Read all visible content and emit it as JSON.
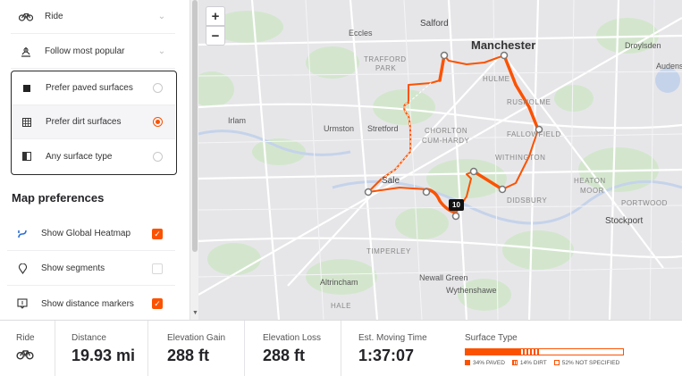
{
  "sidebar": {
    "routing_rows": [
      {
        "label": "Ride",
        "icon": "bike-icon"
      },
      {
        "label": "Follow most popular",
        "icon": "popular-route-icon"
      }
    ],
    "surface_options": [
      {
        "label": "Prefer paved surfaces",
        "icon": "paved-square-icon",
        "selected": false
      },
      {
        "label": "Prefer dirt surfaces",
        "icon": "dirt-grid-icon",
        "selected": true
      },
      {
        "label": "Any surface type",
        "icon": "half-square-icon",
        "selected": false
      }
    ],
    "map_preferences_title": "Map preferences",
    "map_preferences": [
      {
        "label": "Show Global Heatmap",
        "icon": "heatmap-icon",
        "checked": true
      },
      {
        "label": "Show segments",
        "icon": "segment-pin-icon",
        "checked": false
      },
      {
        "label": "Show distance markers",
        "icon": "distance-marker-icon",
        "checked": true
      }
    ]
  },
  "map": {
    "zoom_in": "+",
    "zoom_out": "−",
    "places": [
      {
        "name": "Salford",
        "kind": "town"
      },
      {
        "name": "Manchester",
        "kind": "city"
      },
      {
        "name": "Eccles",
        "kind": "town-small"
      },
      {
        "name": "TRAFFORD",
        "kind": "district"
      },
      {
        "name": "PARK",
        "kind": "district"
      },
      {
        "name": "HULME",
        "kind": "district"
      },
      {
        "name": "RUSHOLME",
        "kind": "district"
      },
      {
        "name": "Droylsden",
        "kind": "town-small"
      },
      {
        "name": "Audenshaw",
        "kind": "town-small"
      },
      {
        "name": "Irlam",
        "kind": "town-small"
      },
      {
        "name": "Urmston",
        "kind": "town-small"
      },
      {
        "name": "Stretford",
        "kind": "town-small"
      },
      {
        "name": "CHORLTON",
        "kind": "district"
      },
      {
        "name": "CUM-HARDY",
        "kind": "district"
      },
      {
        "name": "FALLOWFIELD",
        "kind": "district"
      },
      {
        "name": "WITHINGTON",
        "kind": "district"
      },
      {
        "name": "Sale",
        "kind": "town"
      },
      {
        "name": "DIDSBURY",
        "kind": "district"
      },
      {
        "name": "HEATON",
        "kind": "district"
      },
      {
        "name": "MOOR",
        "kind": "district"
      },
      {
        "name": "PORTWOOD",
        "kind": "district"
      },
      {
        "name": "Stockport",
        "kind": "town"
      },
      {
        "name": "TIMPERLEY",
        "kind": "district"
      },
      {
        "name": "Altrincham",
        "kind": "town-small"
      },
      {
        "name": "Newall Green",
        "kind": "town-small"
      },
      {
        "name": "Wythenshawe",
        "kind": "town-small"
      },
      {
        "name": "HALE",
        "kind": "district"
      }
    ],
    "distance_marker": "10",
    "colors": {
      "route": "#fc5200",
      "water": "#c8d4ea",
      "park": "#cfe6c8",
      "road": "#ffffff"
    }
  },
  "stats": {
    "activity_label": "Ride",
    "activity_icon": "bike-icon",
    "distance_label": "Distance",
    "distance_value": "19.93 mi",
    "elev_gain_label": "Elevation Gain",
    "elev_gain_value": "288 ft",
    "elev_loss_label": "Elevation Loss",
    "elev_loss_value": "288 ft",
    "moving_time_label": "Est. Moving Time",
    "moving_time_value": "1:37:07",
    "surface_label": "Surface Type",
    "surface": [
      {
        "label": "34% PAVED",
        "fraction": 0.34,
        "style": "solid"
      },
      {
        "label": "14% DIRT",
        "fraction": 0.14,
        "style": "striped"
      },
      {
        "label": "52% NOT SPECIFIED",
        "fraction": 0.52,
        "style": "outline"
      }
    ]
  }
}
